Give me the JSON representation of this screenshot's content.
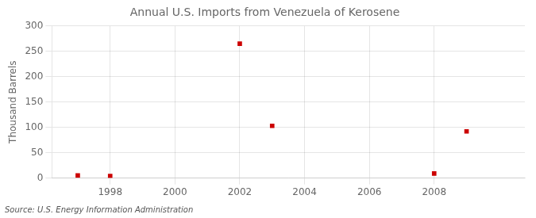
{
  "chart_data": {
    "type": "scatter",
    "title": "Annual U.S. Imports from Venezuela of Kerosene",
    "y_label": "Thousand Barrels",
    "annotations": [
      "Source: U.S. Energy Information Administration"
    ],
    "x": [
      1997,
      1998,
      2002,
      2003,
      2008,
      2009
    ],
    "values": [
      5,
      4,
      265,
      103,
      9,
      92
    ],
    "color": "#cc0000",
    "marker": "square",
    "xlim": [
      1996.2,
      2010.8
    ],
    "xticks": [
      1998,
      2000,
      2002,
      2004,
      2006,
      2008
    ],
    "ylim": [
      0,
      300
    ],
    "yticks": [
      0,
      50,
      100,
      150,
      200,
      250,
      300
    ],
    "grid": true
  }
}
